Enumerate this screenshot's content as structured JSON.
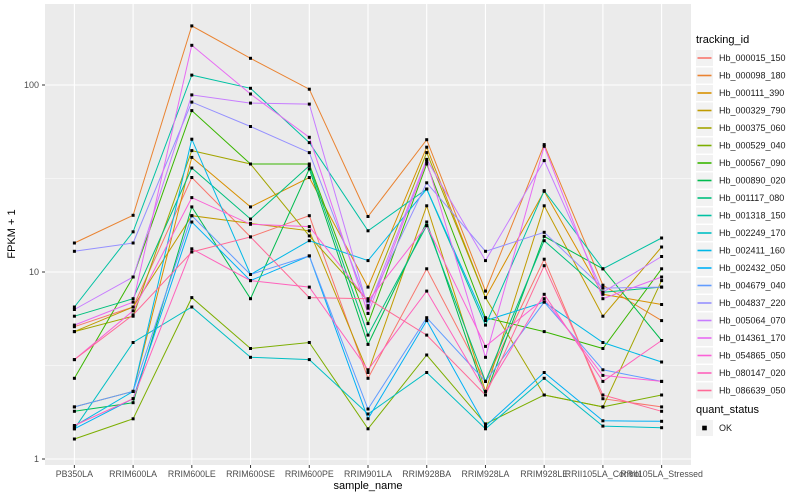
{
  "style": {
    "panel_bg": "#EBEBEB",
    "grid_color": "#FFFFFF",
    "axis_text_color": "#4D4D4D",
    "axis_title_color": "#000000",
    "legend_text_color": "#1a1a1a",
    "legend_key_bg": "#F2F2F2",
    "point_color": "#000000"
  },
  "chart_data": {
    "type": "line",
    "title": "",
    "xlabel": "sample_name",
    "ylabel": "FPKM + 1",
    "y_scale": "log10",
    "ylim": [
      0.93,
      270
    ],
    "y_ticks": [
      1,
      10,
      100
    ],
    "y_tick_labels": [
      "1",
      "10",
      "100"
    ],
    "y_minor_ticks": [
      3.162,
      31.62
    ],
    "grid": true,
    "legend_position": "right",
    "legend_title": "tracking_id",
    "marker": "black-square",
    "categories": [
      "PB350LA",
      "RRIM600LA",
      "RRIM600LE",
      "RRIM600SE",
      "RRIM600PE",
      "RRIM901LA",
      "RRIM928BA",
      "RRIM928LA",
      "RRIM928LE",
      "RRII105LA_Control",
      "RRII105LA_Stressed"
    ],
    "series": [
      {
        "name": "Hb_000015_150",
        "color": "#F8766D",
        "values": [
          5.1,
          6.5,
          32,
          15.4,
          20,
          2.7,
          10.4,
          2.6,
          11.7,
          2.1,
          1.9
        ]
      },
      {
        "name": "Hb_000098_180",
        "color": "#EA8331",
        "values": [
          14.3,
          20.1,
          207,
          139,
          95,
          19.8,
          51,
          7.9,
          48,
          8.5,
          5.5
        ]
      },
      {
        "name": "Hb_000111_390",
        "color": "#D89000",
        "values": [
          1.9,
          2.3,
          41,
          22.3,
          32,
          8.3,
          46.5,
          7.3,
          27,
          7.6,
          6.7
        ]
      },
      {
        "name": "Hb_000329_790",
        "color": "#C09B00",
        "values": [
          4.8,
          6.5,
          20,
          18.2,
          16.6,
          2.9,
          22.6,
          2.3,
          22.6,
          5.8,
          13.6
        ]
      },
      {
        "name": "Hb_000375_060",
        "color": "#A3A500",
        "values": [
          4.8,
          5.8,
          44.6,
          37.8,
          15.6,
          7.0,
          43.5,
          7.3,
          2.2,
          1.9,
          9.0
        ]
      },
      {
        "name": "Hb_000529_040",
        "color": "#7CAE00",
        "values": [
          1.28,
          1.64,
          7.3,
          3.9,
          4.2,
          1.45,
          3.6,
          1.54,
          2.2,
          1.9,
          2.2
        ]
      },
      {
        "name": "Hb_000567_090",
        "color": "#39B600",
        "values": [
          2.7,
          9.4,
          73,
          37.8,
          37.8,
          5.3,
          37.8,
          5.7,
          4.8,
          3.9,
          10.4
        ]
      },
      {
        "name": "Hb_000890_020",
        "color": "#00BB4E",
        "values": [
          1.8,
          2.0,
          22.3,
          7.2,
          35.6,
          4.1,
          18.5,
          2.2,
          15.5,
          10.4,
          4.3
        ]
      },
      {
        "name": "Hb_001117_080",
        "color": "#00BF7D",
        "values": [
          5.8,
          7.2,
          36,
          19.2,
          37,
          4.6,
          17.7,
          2.6,
          14.7,
          7.8,
          8.3
        ]
      },
      {
        "name": "Hb_001318_150",
        "color": "#00C1A3",
        "values": [
          6.5,
          16.4,
          113,
          96,
          49.2,
          16.6,
          27.8,
          5.2,
          27.2,
          10.4,
          15.2
        ]
      },
      {
        "name": "Hb_002249_170",
        "color": "#00BFC4",
        "values": [
          1.45,
          4.2,
          6.5,
          3.5,
          3.4,
          1.74,
          2.9,
          1.45,
          2.7,
          1.5,
          1.47
        ]
      },
      {
        "name": "Hb_002411_160",
        "color": "#00B8E7",
        "values": [
          1.5,
          2.3,
          51.3,
          9.7,
          14.7,
          11.5,
          27.8,
          5.5,
          6.9,
          4.2,
          3.3
        ]
      },
      {
        "name": "Hb_002432_050",
        "color": "#00B0F6",
        "values": [
          1.45,
          2.1,
          18.5,
          9.0,
          12.2,
          1.64,
          5.5,
          1.5,
          2.9,
          1.6,
          1.59
        ]
      },
      {
        "name": "Hb_004679_040",
        "color": "#619CFF",
        "values": [
          1.9,
          2.3,
          20,
          9.7,
          12.2,
          1.85,
          5.7,
          2.6,
          6.9,
          3.0,
          2.6
        ]
      },
      {
        "name": "Hb_004837_220",
        "color": "#9590FF",
        "values": [
          12.9,
          14.3,
          81,
          60,
          43.5,
          6.6,
          30,
          12.9,
          16.3,
          8.2,
          8.3
        ]
      },
      {
        "name": "Hb_005064_070",
        "color": "#C77CFF",
        "values": [
          6.3,
          9.4,
          88.5,
          80,
          79,
          6.4,
          40,
          11.5,
          39.4,
          7.8,
          12.1
        ]
      },
      {
        "name": "Hb_014361_170",
        "color": "#E76BF3",
        "values": [
          5.2,
          6.9,
          163,
          89.5,
          52.5,
          6.0,
          39,
          3.5,
          47,
          7.2,
          9.4
        ]
      },
      {
        "name": "Hb_054865_050",
        "color": "#FB61D7",
        "values": [
          3.4,
          6.2,
          25,
          18,
          17.5,
          7.0,
          17.7,
          4.0,
          7.2,
          2.8,
          2.6
        ]
      },
      {
        "name": "Hb_080147_020",
        "color": "#FF62BC",
        "values": [
          1.51,
          2.1,
          13.3,
          9.0,
          8.3,
          3.0,
          7.9,
          2.3,
          7.6,
          2.6,
          4.3
        ]
      },
      {
        "name": "Hb_086639_050",
        "color": "#FF6A98",
        "values": [
          3.4,
          5.9,
          12.8,
          15.4,
          7.3,
          7.2,
          4.6,
          2.2,
          10.8,
          2.2,
          1.8
        ]
      }
    ],
    "quant_legend": {
      "title": "quant_status",
      "entries": [
        {
          "label": "OK",
          "marker": "black-square"
        }
      ]
    }
  }
}
